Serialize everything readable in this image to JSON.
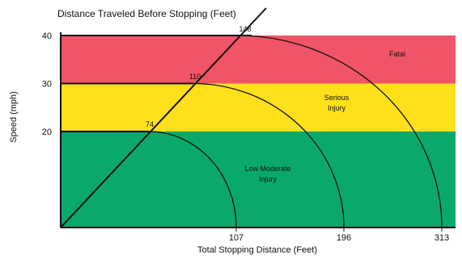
{
  "chart_data": {
    "type": "area",
    "title": "Distance Traveled Before Stopping (Feet)",
    "xlabel": "Total Stopping Distance (Feet)",
    "ylabel": "Speed (mph)",
    "yticks": [
      20,
      30,
      40
    ],
    "xticks": [
      107,
      196,
      313
    ],
    "travel_line": {
      "label": "Distance Traveled Before Stopping (Feet)",
      "points": [
        {
          "speed": 20,
          "distance": 74
        },
        {
          "speed": 30,
          "distance": 110
        },
        {
          "speed": 40,
          "distance": 148
        }
      ]
    },
    "stopping_arcs": [
      {
        "speed": 20,
        "travel_distance": 74,
        "stopping_distance": 107
      },
      {
        "speed": 30,
        "travel_distance": 110,
        "stopping_distance": 196
      },
      {
        "speed": 40,
        "travel_distance": 148,
        "stopping_distance": 313
      }
    ],
    "zones": [
      {
        "label_lines": [
          "Low Moderate",
          "Injury"
        ],
        "speed_range": [
          0,
          20
        ],
        "color": "#0aa86a"
      },
      {
        "label_lines": [
          "Serious",
          "Injury"
        ],
        "speed_range": [
          20,
          30
        ],
        "color": "#ffe01a"
      },
      {
        "label_lines": [
          "Fatal"
        ],
        "speed_range": [
          30,
          40
        ],
        "color": "#ef5566"
      }
    ]
  }
}
